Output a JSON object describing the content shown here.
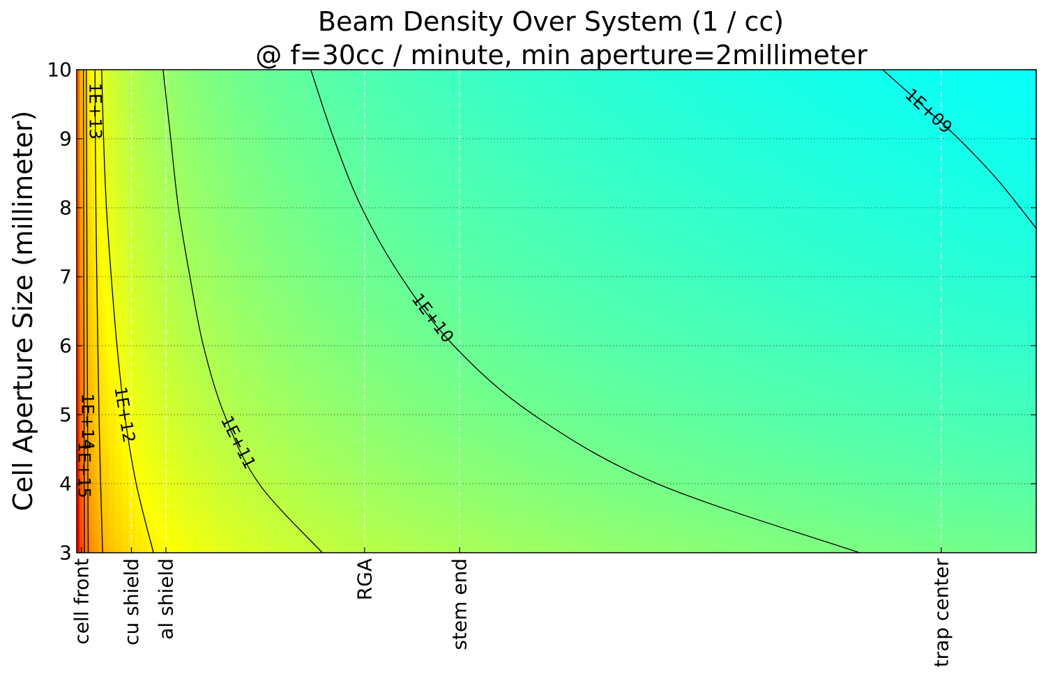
{
  "chart_data": {
    "type": "heatmap",
    "title": "Beam Density Over System (1 / cc)",
    "subtitle": "@ f=30cc / minute, min aperture=2millimeter",
    "xlabel": "",
    "ylabel": "Cell Aperture Size (millimeter)",
    "xlim": [
      0,
      100
    ],
    "ylim": [
      3,
      10
    ],
    "yticks": [
      3,
      4,
      5,
      6,
      7,
      8,
      9,
      10
    ],
    "grid": true,
    "colorscale": "jet",
    "colorscale_log_range": [
      8.6,
      15.8
    ],
    "stations": [
      {
        "label": "cell front",
        "x": 0.5
      },
      {
        "label": "cu shield",
        "x": 5.7
      },
      {
        "label": "al shield",
        "x": 9.3
      },
      {
        "label": "RGA",
        "x": 30.0
      },
      {
        "label": "stem end",
        "x": 39.9
      },
      {
        "label": "trap center",
        "x": 90.1
      }
    ],
    "contours": [
      {
        "label": "1E+15",
        "level": 15,
        "points": [
          [
            0.8,
            3
          ],
          [
            0.75,
            6
          ],
          [
            0.7,
            10
          ]
        ]
      },
      {
        "label": "1E+14",
        "level": 14,
        "points": [
          [
            1.2,
            3
          ],
          [
            1.1,
            6
          ],
          [
            1.0,
            10
          ]
        ]
      },
      {
        "label": "1E+13",
        "level": 13,
        "points": [
          [
            2.7,
            3
          ],
          [
            2.4,
            4.5
          ],
          [
            2.2,
            6
          ],
          [
            2.0,
            8
          ],
          [
            1.9,
            10
          ]
        ]
      },
      {
        "label": "1E+12",
        "level": 12,
        "points": [
          [
            8.0,
            3
          ],
          [
            6.2,
            4
          ],
          [
            5.0,
            5
          ],
          [
            4.2,
            6
          ],
          [
            3.6,
            7
          ],
          [
            3.1,
            8
          ],
          [
            2.8,
            9
          ],
          [
            2.6,
            10
          ]
        ]
      },
      {
        "label": "1E+11",
        "level": 11,
        "points": [
          [
            25.6,
            3
          ],
          [
            19.0,
            4
          ],
          [
            15.4,
            5
          ],
          [
            13.2,
            6
          ],
          [
            11.8,
            7
          ],
          [
            10.6,
            8
          ],
          [
            9.8,
            9
          ],
          [
            9.0,
            10
          ]
        ]
      },
      {
        "label": "1E+10",
        "level": 10,
        "points": [
          [
            81.6,
            3
          ],
          [
            60.5,
            4
          ],
          [
            47.6,
            5
          ],
          [
            39.3,
            6
          ],
          [
            33.8,
            7
          ],
          [
            29.7,
            8
          ],
          [
            26.8,
            9
          ],
          [
            24.4,
            10
          ]
        ]
      },
      {
        "label": "1E+09",
        "level": 9,
        "points": [
          [
            100,
            7.7
          ],
          [
            96.0,
            8.4
          ],
          [
            91.9,
            9.0
          ],
          [
            88.0,
            9.5
          ],
          [
            84.0,
            10
          ]
        ]
      }
    ]
  }
}
